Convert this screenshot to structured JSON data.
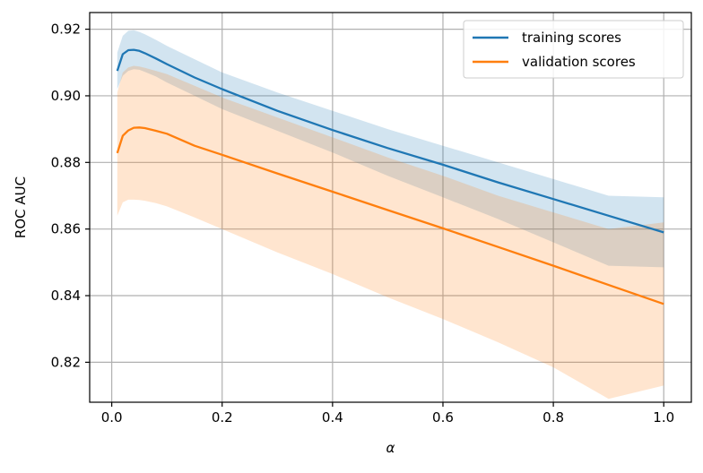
{
  "chart_data": {
    "type": "line",
    "title": "",
    "xlabel": "α",
    "ylabel": "ROC AUC",
    "xlim": [
      -0.04,
      1.05
    ],
    "ylim": [
      0.808,
      0.925
    ],
    "xticks": [
      0.0,
      0.2,
      0.4,
      0.6,
      0.8,
      1.0
    ],
    "xtick_labels": [
      "0.0",
      "0.2",
      "0.4",
      "0.6",
      "0.8",
      "1.0"
    ],
    "yticks": [
      0.82,
      0.84,
      0.86,
      0.88,
      0.9,
      0.92
    ],
    "ytick_labels": [
      "0.82",
      "0.84",
      "0.86",
      "0.88",
      "0.90",
      "0.92"
    ],
    "grid": true,
    "legend_position": "top-right",
    "series": [
      {
        "name": "training scores",
        "color": "#1f77b4",
        "x": [
          0.01,
          0.02,
          0.03,
          0.04,
          0.05,
          0.06,
          0.08,
          0.1,
          0.15,
          0.2,
          0.3,
          0.4,
          0.5,
          0.6,
          0.7,
          0.8,
          0.9,
          1.0
        ],
        "y": [
          0.9075,
          0.9125,
          0.9137,
          0.9138,
          0.9135,
          0.9128,
          0.9112,
          0.9095,
          0.9055,
          0.902,
          0.8955,
          0.8897,
          0.8843,
          0.8793,
          0.874,
          0.869,
          0.864,
          0.859
        ],
        "lower": [
          0.902,
          0.906,
          0.9075,
          0.908,
          0.9078,
          0.9072,
          0.9058,
          0.904,
          0.9,
          0.896,
          0.8895,
          0.883,
          0.876,
          0.8695,
          0.863,
          0.856,
          0.849,
          0.8485
        ],
        "upper": [
          0.913,
          0.918,
          0.9195,
          0.9197,
          0.9192,
          0.9185,
          0.9168,
          0.915,
          0.911,
          0.907,
          0.901,
          0.8955,
          0.89,
          0.885,
          0.88,
          0.875,
          0.87,
          0.8695
        ]
      },
      {
        "name": "validation scores",
        "color": "#ff7f0e",
        "x": [
          0.01,
          0.02,
          0.03,
          0.04,
          0.05,
          0.06,
          0.08,
          0.1,
          0.15,
          0.2,
          0.3,
          0.4,
          0.5,
          0.6,
          0.7,
          0.8,
          0.9,
          1.0
        ],
        "y": [
          0.8828,
          0.888,
          0.8896,
          0.8904,
          0.8905,
          0.8903,
          0.8895,
          0.8886,
          0.885,
          0.8823,
          0.8767,
          0.8712,
          0.8657,
          0.8602,
          0.8546,
          0.849,
          0.8432,
          0.8375
        ],
        "lower": [
          0.864,
          0.868,
          0.8688,
          0.8688,
          0.8687,
          0.8685,
          0.8678,
          0.8668,
          0.8635,
          0.86,
          0.853,
          0.8465,
          0.8395,
          0.833,
          0.826,
          0.8185,
          0.809,
          0.813
        ],
        "upper": [
          0.901,
          0.907,
          0.9085,
          0.909,
          0.9088,
          0.9084,
          0.9075,
          0.9065,
          0.903,
          0.8995,
          0.8935,
          0.8875,
          0.8815,
          0.876,
          0.87,
          0.865,
          0.86,
          0.862
        ]
      }
    ]
  }
}
